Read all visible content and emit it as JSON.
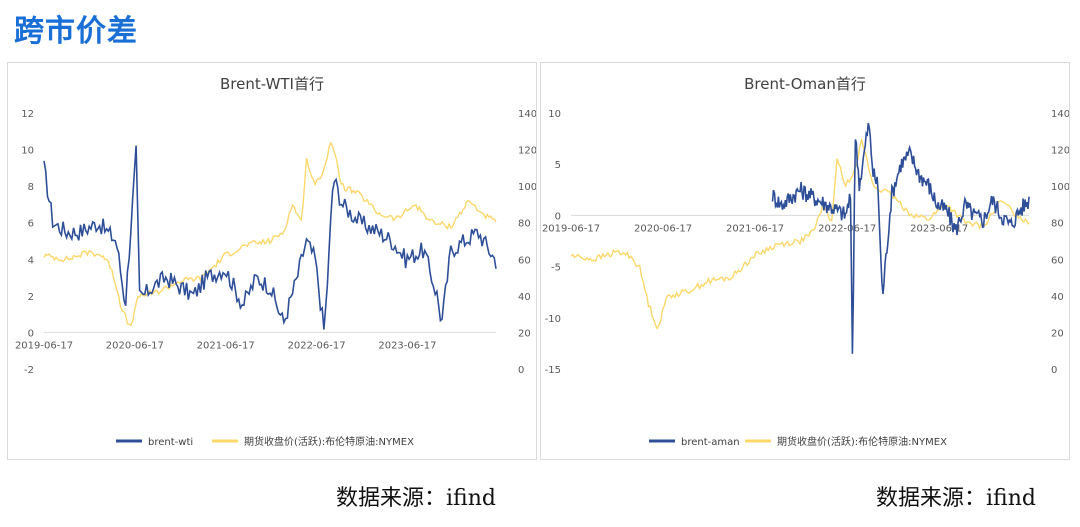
{
  "page": {
    "title": "跨市价差",
    "source_left": "数据来源：ifind",
    "source_right": "数据来源：ifind"
  },
  "colors": {
    "blue": "#2e4f98",
    "yellow": "#fcd86b",
    "axis": "#d9d9d9",
    "text": "#595959"
  },
  "chart_data": [
    {
      "type": "line",
      "title": "Brent-WTI首行",
      "x_ticks": [
        "2019-06-17",
        "2020-06-17",
        "2021-06-17",
        "2022-06-17",
        "2023-06-17"
      ],
      "y_left_ticks": [
        -2,
        0,
        2,
        4,
        6,
        8,
        10,
        12
      ],
      "y_right_ticks": [
        0,
        20,
        40,
        60,
        80,
        100,
        120,
        140
      ],
      "ylim_left": [
        -2,
        12
      ],
      "ylim_right": [
        0,
        140
      ],
      "series": [
        {
          "name": "brent-wti",
          "axis": "left",
          "color": "#2e4f98",
          "x": [
            0.0,
            0.02,
            0.05,
            0.08,
            0.12,
            0.16,
            0.18,
            0.2,
            0.205,
            0.21,
            0.22,
            0.24,
            0.27,
            0.3,
            0.33,
            0.36,
            0.4,
            0.44,
            0.47,
            0.5,
            0.53,
            0.56,
            0.58,
            0.6,
            0.62,
            0.63,
            0.64,
            0.66,
            0.7,
            0.74,
            0.77,
            0.8,
            0.84,
            0.87,
            0.88,
            0.9,
            0.93,
            0.96,
            1.0
          ],
          "y": [
            9.0,
            6.0,
            5.5,
            5.5,
            6.0,
            5.0,
            1.5,
            8.5,
            10.2,
            2.0,
            2.0,
            2.5,
            3.0,
            2.5,
            2.0,
            3.0,
            3.5,
            1.5,
            3.0,
            2.5,
            0.5,
            3.0,
            5.0,
            4.0,
            0.0,
            4.0,
            8.5,
            7.0,
            6.0,
            5.5,
            5.0,
            4.0,
            4.5,
            2.0,
            0.5,
            4.5,
            5.0,
            5.5,
            3.9
          ]
        },
        {
          "name": "期货收盘价(活跃):布伦特原油:NYMEX",
          "axis": "right",
          "color": "#fcd86b",
          "x": [
            0.0,
            0.05,
            0.1,
            0.13,
            0.15,
            0.17,
            0.19,
            0.21,
            0.25,
            0.3,
            0.35,
            0.4,
            0.45,
            0.5,
            0.53,
            0.55,
            0.57,
            0.58,
            0.6,
            0.62,
            0.635,
            0.66,
            0.7,
            0.74,
            0.78,
            0.82,
            0.86,
            0.9,
            0.94,
            0.97,
            1.0
          ],
          "y": [
            62,
            60,
            64,
            62,
            55,
            35,
            22,
            40,
            42,
            48,
            50,
            62,
            68,
            70,
            75,
            90,
            80,
            115,
            100,
            110,
            125,
            100,
            95,
            85,
            82,
            90,
            80,
            78,
            92,
            85,
            80
          ]
        }
      ]
    },
    {
      "type": "line",
      "title": "Brent-Oman首行",
      "x_ticks": [
        "2019-06-17",
        "2020-06-17",
        "2021-06-17",
        "2022-06-17",
        "2023-06-17"
      ],
      "y_left_ticks": [
        -15,
        -10,
        -5,
        0,
        5,
        10
      ],
      "y_right_ticks": [
        0,
        20,
        40,
        60,
        80,
        100,
        120,
        140
      ],
      "ylim_left": [
        -15,
        10
      ],
      "ylim_right": [
        0,
        140
      ],
      "series": [
        {
          "name": "brent-aman",
          "axis": "left",
          "color": "#2e4f98",
          "x": [
            0.44,
            0.46,
            0.5,
            0.54,
            0.58,
            0.6,
            0.61,
            0.615,
            0.62,
            0.63,
            0.65,
            0.66,
            0.67,
            0.68,
            0.7,
            0.72,
            0.74,
            0.76,
            0.78,
            0.8,
            0.82,
            0.84,
            0.86,
            0.88,
            0.9,
            0.92,
            0.94,
            0.96,
            0.98,
            1.0
          ],
          "y": [
            2.0,
            1.0,
            2.5,
            1.5,
            0.5,
            0.0,
            2.0,
            -15,
            8.0,
            3.0,
            9.0,
            4.0,
            3.0,
            -8.0,
            2.0,
            5.0,
            6.0,
            4.0,
            3.0,
            1.0,
            0.5,
            -1.5,
            1.0,
            0.0,
            -0.5,
            1.5,
            0.0,
            -1.0,
            0.5,
            1.5
          ]
        },
        {
          "name": "期货收盘价(活跃):布伦特原油:NYMEX",
          "axis": "right",
          "color": "#fcd86b",
          "x": [
            0.0,
            0.05,
            0.1,
            0.13,
            0.15,
            0.17,
            0.19,
            0.21,
            0.25,
            0.3,
            0.35,
            0.4,
            0.45,
            0.5,
            0.53,
            0.55,
            0.57,
            0.58,
            0.6,
            0.62,
            0.635,
            0.66,
            0.7,
            0.74,
            0.78,
            0.82,
            0.86,
            0.9,
            0.94,
            0.97,
            1.0
          ],
          "y": [
            62,
            60,
            64,
            62,
            55,
            35,
            22,
            40,
            42,
            48,
            50,
            62,
            68,
            70,
            75,
            90,
            80,
            115,
            100,
            110,
            125,
            100,
            95,
            85,
            82,
            90,
            80,
            78,
            92,
            85,
            80
          ]
        }
      ]
    }
  ]
}
